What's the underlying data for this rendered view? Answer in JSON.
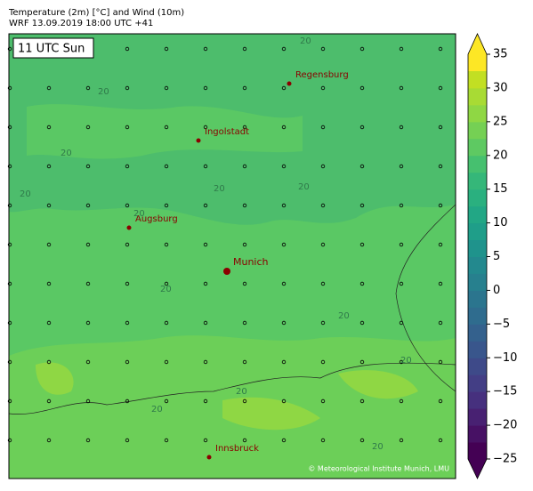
{
  "header": {
    "title": "Temperature (2m) [°C] and Wind (10m)",
    "subtitle": "WRF 13.09.2019 18:00 UTC +41"
  },
  "map": {
    "time_label": "11 UTC Sun",
    "cities": [
      "Regensburg",
      "Ingolstadt",
      "Augsburg",
      "Munich",
      "Innsbruck"
    ],
    "contour_labels": [
      "20",
      "20",
      "20",
      "20",
      "20",
      "20",
      "20",
      "20",
      "20",
      "20",
      "20",
      "20",
      "20"
    ],
    "credit": "© Meteorological Institute Munich, LMU"
  },
  "colorbar": {
    "lim": [
      -25,
      35
    ],
    "ticks": [
      {
        "value": -25,
        "label": "−25"
      },
      {
        "value": -20,
        "label": "−20"
      },
      {
        "value": -15,
        "label": "−15"
      },
      {
        "value": -10,
        "label": "−10"
      },
      {
        "value": -5,
        "label": "−5"
      },
      0,
      5,
      10,
      15,
      20,
      25,
      30,
      35
    ],
    "colors": [
      "#440154",
      "#471164",
      "#482172",
      "#46307e",
      "#433e85",
      "#3e4a89",
      "#39568c",
      "#34618d",
      "#2f6c8e",
      "#2b758e",
      "#27808e",
      "#23898e",
      "#1f938c",
      "#1f9e89",
      "#22a785",
      "#2ab07f",
      "#35b779",
      "#46c06f",
      "#5ec962",
      "#75d054",
      "#8fd744",
      "#a8db34",
      "#c2df23",
      "#fde725"
    ]
  }
}
